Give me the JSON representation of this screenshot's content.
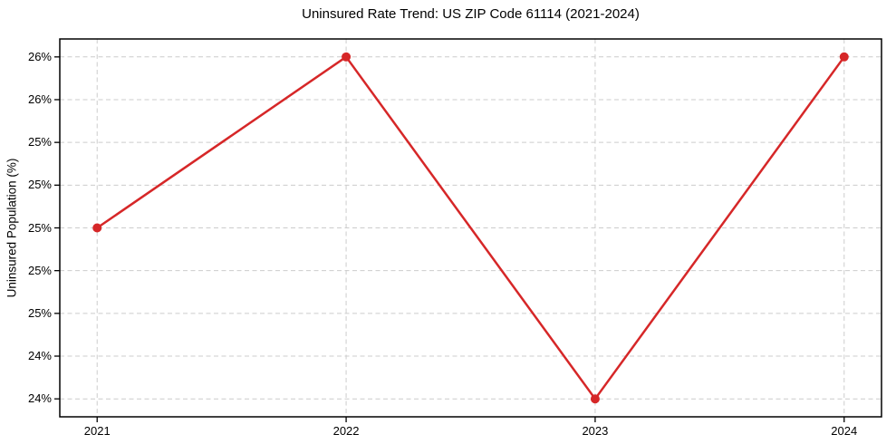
{
  "chart_data": {
    "type": "line",
    "title": "Uninsured Rate Trend: US ZIP Code 61114 (2021-2024)",
    "xlabel": "",
    "ylabel": "Uninsured Population (%)",
    "x": [
      2021,
      2022,
      2023,
      2024
    ],
    "values": [
      25.0,
      26.0,
      24.0,
      26.0
    ],
    "xticks": [
      2021,
      2022,
      2023,
      2024
    ],
    "xtick_labels": [
      "2021",
      "2022",
      "2023",
      "2024"
    ],
    "yticks": [
      24.0,
      24.25,
      24.5,
      24.75,
      25.0,
      25.25,
      25.5,
      25.75,
      26.0
    ],
    "ytick_labels": [
      "24%",
      "24%",
      "25%",
      "25%",
      "25%",
      "25%",
      "25%",
      "26%",
      "26%"
    ],
    "xlim": [
      2020.85,
      2024.15
    ],
    "ylim": [
      23.895,
      26.105
    ],
    "legend": false,
    "grid": true,
    "grid_style": "dashed",
    "line_color": "#d62728",
    "marker_color": "#d62728",
    "grid_color": "#cccccc",
    "axes_edge_color": "#000000",
    "tick_color": "#000000",
    "background_color": "#ffffff"
  }
}
